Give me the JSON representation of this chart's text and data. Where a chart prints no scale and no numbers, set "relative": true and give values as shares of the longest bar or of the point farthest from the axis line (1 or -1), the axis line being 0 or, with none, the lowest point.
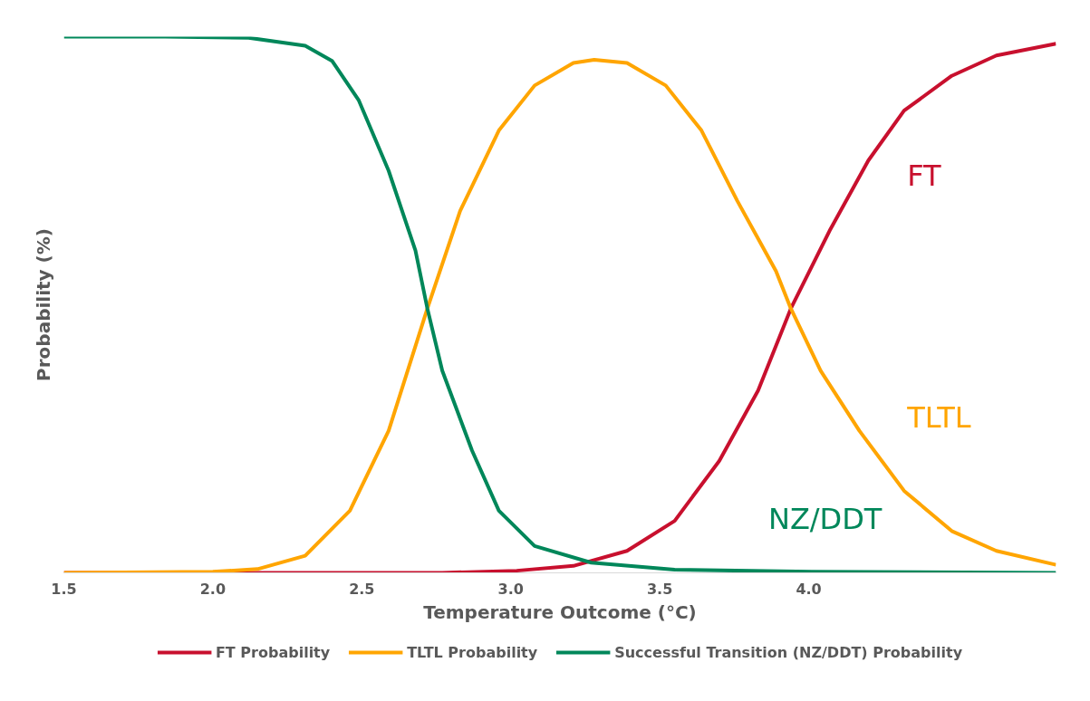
{
  "chart_data": {
    "type": "line",
    "relative": true,
    "xlabel": "Temperature Outcome (°C)",
    "ylabel": "Probability (%)",
    "xlim": [
      1.5,
      4.83
    ],
    "xticks": [
      {
        "value": 1.5,
        "label": "1.5"
      },
      {
        "value": 2,
        "label": "2.0"
      },
      {
        "value": 2.5,
        "label": "2.5"
      },
      {
        "value": 3,
        "label": "3.0"
      },
      {
        "value": 3.5,
        "label": "3.5"
      },
      {
        "value": 4,
        "label": "4.0"
      }
    ],
    "grid": false,
    "legend": "bottom",
    "marker": "none",
    "line_style": "solid",
    "series": [
      {
        "name": "FT Probability",
        "color": "#c8102e",
        "x": [
          1.5,
          2.77,
          3.02,
          3.21,
          3.39,
          3.55,
          3.7,
          3.83,
          3.94,
          4.07,
          4.2,
          4.32,
          4.48,
          4.63,
          4.83
        ],
        "values": [
          0,
          0,
          0.004,
          0.013,
          0.041,
          0.097,
          0.209,
          0.34,
          0.493,
          0.638,
          0.769,
          0.862,
          0.927,
          0.965,
          0.987
        ]
      },
      {
        "name": "TLTL Probability",
        "color": "#ffa500",
        "x": [
          1.5,
          2.0,
          2.15,
          2.31,
          2.46,
          2.59,
          2.72,
          2.83,
          2.96,
          3.08,
          3.21,
          3.28,
          3.39,
          3.52,
          3.64,
          3.76,
          3.89,
          3.94,
          4.04,
          4.17,
          4.32,
          4.48,
          4.63,
          4.83
        ],
        "values": [
          0,
          0.002,
          0.007,
          0.032,
          0.116,
          0.265,
          0.493,
          0.675,
          0.825,
          0.909,
          0.951,
          0.957,
          0.951,
          0.909,
          0.825,
          0.694,
          0.563,
          0.493,
          0.377,
          0.265,
          0.153,
          0.078,
          0.041,
          0.015
        ]
      },
      {
        "name": "Successful Transition (NZ/DDT) Probability",
        "color": "#00875a",
        "x": [
          1.5,
          1.84,
          2.12,
          2.31,
          2.4,
          2.49,
          2.59,
          2.68,
          2.72,
          2.77,
          2.87,
          2.96,
          3.08,
          3.27,
          3.55,
          4.01,
          4.83
        ],
        "values": [
          1.0,
          1.0,
          0.998,
          0.983,
          0.955,
          0.881,
          0.75,
          0.601,
          0.493,
          0.377,
          0.228,
          0.116,
          0.05,
          0.019,
          0.006,
          0.002,
          0
        ]
      }
    ],
    "annotations": [
      "FT",
      "TLTL",
      "NZ/DDT"
    ]
  }
}
